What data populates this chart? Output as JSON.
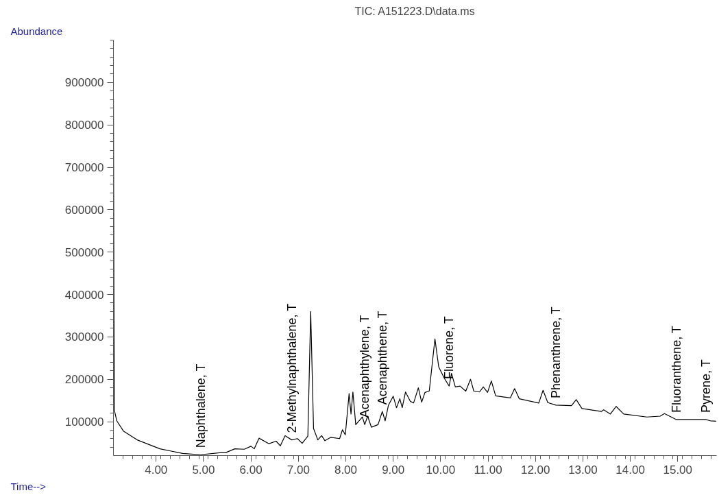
{
  "chart_data": {
    "type": "line",
    "title": "TIC: A151223.D\\data.ms",
    "xlabel": "Time-->",
    "ylabel": "Abundance",
    "x": [
      3.1,
      3.11,
      3.12,
      3.17,
      3.31,
      3.6,
      4.08,
      4.56,
      4.94,
      5.38,
      5.47,
      5.66,
      5.86,
      6.0,
      6.07,
      6.17,
      6.38,
      6.53,
      6.62,
      6.72,
      6.86,
      6.98,
      7.08,
      7.2,
      7.26,
      7.32,
      7.41,
      7.49,
      7.56,
      7.68,
      7.87,
      7.93,
      7.99,
      8.07,
      8.11,
      8.15,
      8.21,
      8.28,
      8.35,
      8.4,
      8.46,
      8.54,
      8.68,
      8.77,
      8.83,
      8.9,
      9.0,
      9.07,
      9.14,
      9.19,
      9.26,
      9.36,
      9.43,
      9.53,
      9.6,
      9.67,
      9.76,
      9.88,
      9.96,
      10.08,
      10.18,
      10.23,
      10.31,
      10.41,
      10.53,
      10.63,
      10.7,
      10.82,
      10.9,
      10.99,
      11.07,
      11.16,
      11.47,
      11.56,
      11.66,
      12.07,
      12.16,
      12.26,
      12.43,
      12.76,
      12.86,
      12.98,
      13.39,
      13.44,
      13.58,
      13.7,
      13.86,
      14.35,
      14.63,
      14.72,
      14.97,
      15.59,
      15.69,
      15.81
    ],
    "series": [
      {
        "color": "#000000",
        "values": [
          860000,
          400000,
          127000,
          102000,
          78000,
          57000,
          36000,
          25000,
          22000,
          27000,
          27000,
          36000,
          35000,
          42000,
          36000,
          61000,
          48000,
          54000,
          43000,
          67000,
          57000,
          60000,
          49000,
          66000,
          360000,
          84000,
          57000,
          67000,
          55000,
          63000,
          60000,
          81000,
          69000,
          166000,
          118000,
          170000,
          93000,
          102000,
          111000,
          93000,
          113000,
          87000,
          93000,
          124000,
          102000,
          139000,
          160000,
          133000,
          154000,
          133000,
          170000,
          148000,
          144000,
          180000,
          146000,
          169000,
          172000,
          295000,
          229000,
          202000,
          184000,
          214000,
          182000,
          184000,
          172000,
          200000,
          172000,
          170000,
          182000,
          169000,
          196000,
          161000,
          156000,
          178000,
          154000,
          144000,
          174000,
          145000,
          139000,
          138000,
          152000,
          131000,
          124000,
          128000,
          118000,
          136000,
          118000,
          111000,
          113000,
          119000,
          105000,
          105000,
          102000,
          101000
        ]
      }
    ],
    "annotations": [
      {
        "text": "Naphthalene, T",
        "x": 4.94,
        "y": 22000
      },
      {
        "text": "2-Methylnaphthalene, T",
        "x": 6.86,
        "y": 57000
      },
      {
        "text": "Acenaphthylene, T",
        "x": 8.4,
        "y": 93000
      },
      {
        "text": "Acenaphthene, T",
        "x": 8.77,
        "y": 124000
      },
      {
        "text": "Fluorene, T",
        "x": 10.18,
        "y": 184000
      },
      {
        "text": "Phenanthrene, T",
        "x": 12.43,
        "y": 139000
      },
      {
        "text": "Fluoranthene, T",
        "x": 14.97,
        "y": 105000
      },
      {
        "text": "Pyrene, T",
        "x": 15.59,
        "y": 105000
      }
    ],
    "xlim": [
      3.1,
      15.82
    ],
    "ylim": [
      20000,
      1000000
    ],
    "xticks": [
      {
        "value": 4,
        "label": "4.00"
      },
      {
        "value": 5,
        "label": "5.00"
      },
      {
        "value": 6,
        "label": "6.00"
      },
      {
        "value": 7,
        "label": "7.00"
      },
      {
        "value": 8,
        "label": "8.00"
      },
      {
        "value": 9,
        "label": "9.00"
      },
      {
        "value": 10,
        "label": "10.00"
      },
      {
        "value": 11,
        "label": "11.00"
      },
      {
        "value": 12,
        "label": "12.00"
      },
      {
        "value": 13,
        "label": "13.00"
      },
      {
        "value": 14,
        "label": "14.00"
      },
      {
        "value": 15,
        "label": "15.00"
      }
    ],
    "yticks": [
      100000,
      200000,
      300000,
      400000,
      500000,
      600000,
      700000,
      800000,
      900000
    ],
    "grid": false,
    "marker": "none",
    "line_style": "solid"
  }
}
